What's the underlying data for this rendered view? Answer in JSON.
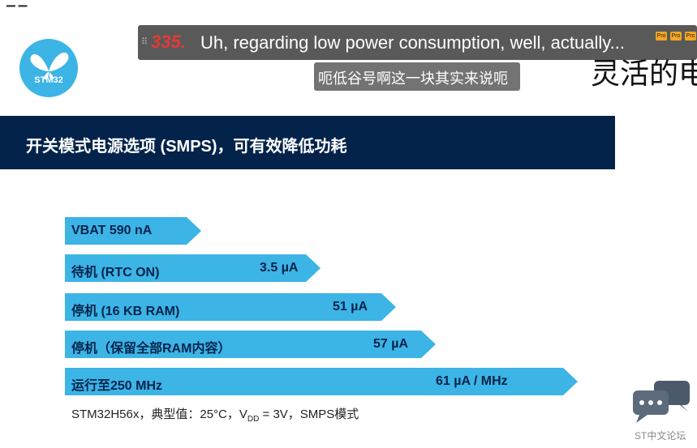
{
  "top_strip": {
    "glyph": "▁ ▁"
  },
  "logo": {
    "text": "STM32",
    "color": "#3cb4e6"
  },
  "slide": {
    "title": "灵活的电"
  },
  "banner": {
    "text": "开关模式电源选项 (SMPS)，可有效降低功耗",
    "color": "#03234b"
  },
  "bars": [
    {
      "label": "VBAT 590 nA",
      "value": ""
    },
    {
      "label": "待机 (RTC ON)",
      "value": "3.5 µA"
    },
    {
      "label": "停机 (16 KB RAM)",
      "value": "51 µA"
    },
    {
      "label": "停机（保留全部RAM内容）",
      "value": "57 µA"
    },
    {
      "label": "运行至250 MHz",
      "value": "61 µA / MHz"
    }
  ],
  "bar_color": "#3cb4e6",
  "footnote": {
    "prefix": "STM32H56x，典型值：25°C，V",
    "sub": "DD",
    "suffix": " = 3V，SMPS模式"
  },
  "subtitle": {
    "number": "335.",
    "english": "Uh, regarding low power consumption, well, actually...",
    "chinese": "呃低谷号啊这一块其实来说呃",
    "badge": "Pro"
  },
  "chat_widget": {
    "label": "ST中文论坛"
  }
}
